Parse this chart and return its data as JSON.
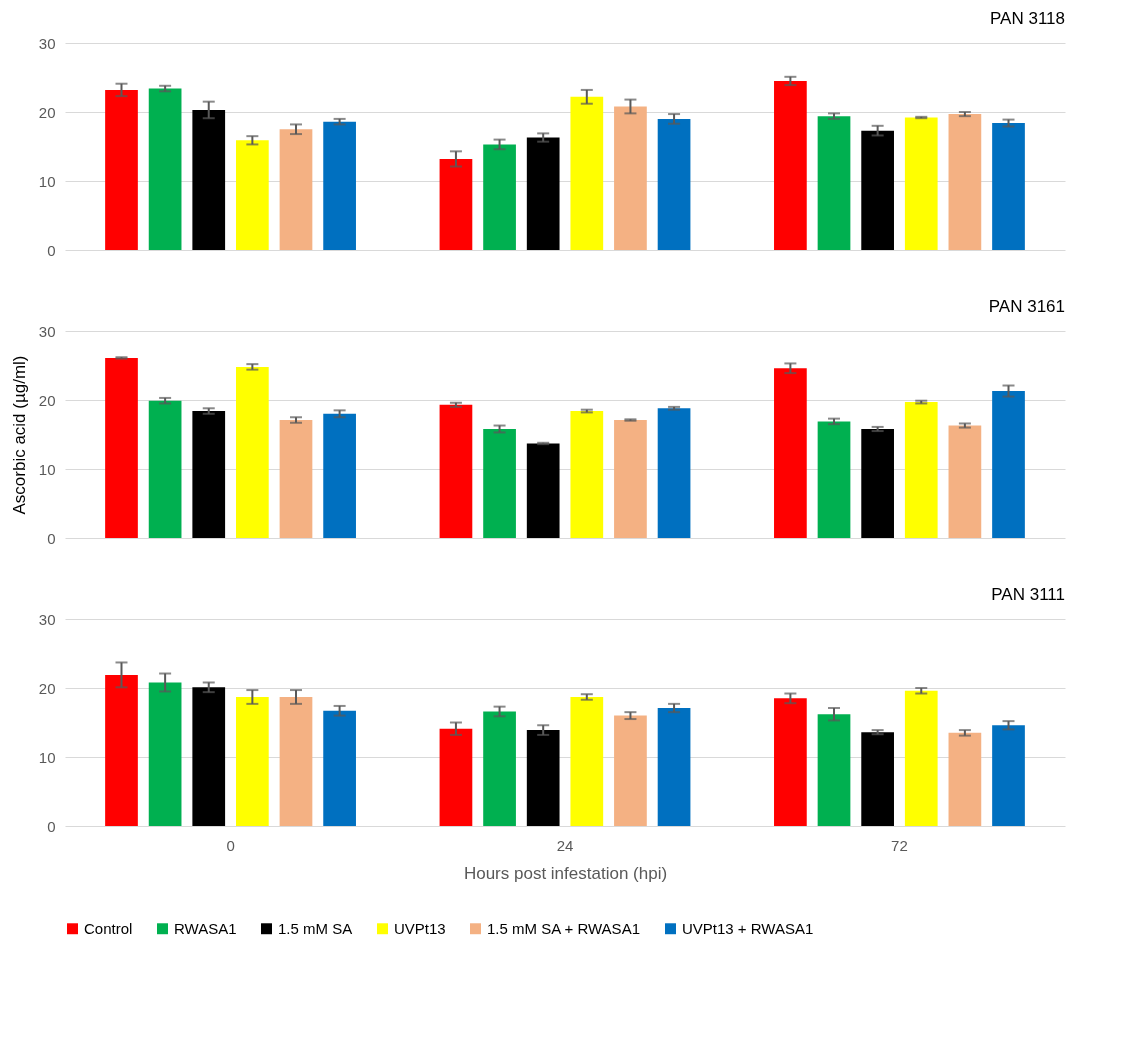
{
  "chart_data": [
    {
      "type": "bar",
      "title": "PAN 3118",
      "categories": [
        "0",
        "24",
        "72"
      ],
      "ylim": [
        0,
        30
      ],
      "yticks": [
        0,
        10,
        20,
        30
      ],
      "grid": "y",
      "legend": "bottom",
      "tick_labels": "y",
      "series": [
        {
          "name": "Control",
          "color": "#ff0000",
          "values": [
            23.2,
            13.2,
            24.5
          ],
          "errors": [
            0.9,
            1.1,
            0.6
          ]
        },
        {
          "name": "RWASA1",
          "color": "#00b050",
          "values": [
            23.4,
            15.3,
            19.4
          ],
          "errors": [
            0.4,
            0.7,
            0.4
          ]
        },
        {
          "name": "1.5 mM SA",
          "color": "#000000",
          "values": [
            20.3,
            16.3,
            17.3
          ],
          "errors": [
            1.2,
            0.6,
            0.7
          ]
        },
        {
          "name": "UVPt13",
          "color": "#ffff00",
          "values": [
            15.9,
            22.2,
            19.2
          ],
          "errors": [
            0.6,
            1.0,
            0.1
          ]
        },
        {
          "name": "1.5 mM SA + RWASA1",
          "color": "#f4b183",
          "values": [
            17.5,
            20.8,
            19.7
          ],
          "errors": [
            0.7,
            1.0,
            0.3
          ]
        },
        {
          "name": "UVPt13 + RWASA1",
          "color": "#0070c0",
          "values": [
            18.6,
            19.0,
            18.4
          ],
          "errors": [
            0.4,
            0.7,
            0.5
          ]
        }
      ]
    },
    {
      "type": "bar",
      "title": "PAN 3161",
      "ylabel": "Ascorbic acid (µg/ml)",
      "categories": [
        "0",
        "24",
        "72"
      ],
      "ylim": [
        0,
        30
      ],
      "yticks": [
        0,
        10,
        20,
        30
      ],
      "grid": "y",
      "tick_labels": "y",
      "series": [
        {
          "color": "#ff0000",
          "values": [
            26.1,
            19.3,
            24.6
          ],
          "errors": [
            0.1,
            0.3,
            0.7
          ]
        },
        {
          "color": "#00b050",
          "values": [
            19.9,
            15.8,
            16.9
          ],
          "errors": [
            0.4,
            0.5,
            0.4
          ]
        },
        {
          "color": "#000000",
          "values": [
            18.4,
            13.7,
            15.8
          ],
          "errors": [
            0.4,
            0.1,
            0.3
          ]
        },
        {
          "color": "#ffff00",
          "values": [
            24.8,
            18.4,
            19.7
          ],
          "errors": [
            0.4,
            0.2,
            0.2
          ]
        },
        {
          "color": "#f4b183",
          "values": [
            17.1,
            17.1,
            16.3
          ],
          "errors": [
            0.4,
            0.1,
            0.3
          ]
        },
        {
          "color": "#0070c0",
          "values": [
            18.0,
            18.8,
            21.3
          ],
          "errors": [
            0.5,
            0.2,
            0.8
          ]
        }
      ]
    },
    {
      "type": "bar",
      "title": "PAN 3111",
      "xlabel": "Hours post infestation (hpi)",
      "categories": [
        "0",
        "24",
        "72"
      ],
      "ylim": [
        0,
        30
      ],
      "yticks": [
        0,
        10,
        20,
        30
      ],
      "grid": "y",
      "series": [
        {
          "color": "#ff0000",
          "values": [
            21.9,
            14.1,
            18.5
          ],
          "errors": [
            1.8,
            0.9,
            0.7
          ]
        },
        {
          "color": "#00b050",
          "values": [
            20.8,
            16.6,
            16.2
          ],
          "errors": [
            1.3,
            0.7,
            0.9
          ]
        },
        {
          "color": "#000000",
          "values": [
            20.1,
            13.9,
            13.6
          ],
          "errors": [
            0.7,
            0.7,
            0.3
          ]
        },
        {
          "color": "#ffff00",
          "values": [
            18.7,
            18.7,
            19.6
          ],
          "errors": [
            1.0,
            0.4,
            0.4
          ]
        },
        {
          "color": "#f4b183",
          "values": [
            18.7,
            16.0,
            13.5
          ],
          "errors": [
            1.0,
            0.5,
            0.4
          ]
        },
        {
          "color": "#0070c0",
          "values": [
            16.7,
            17.1,
            14.6
          ],
          "errors": [
            0.7,
            0.6,
            0.6
          ]
        }
      ]
    }
  ]
}
